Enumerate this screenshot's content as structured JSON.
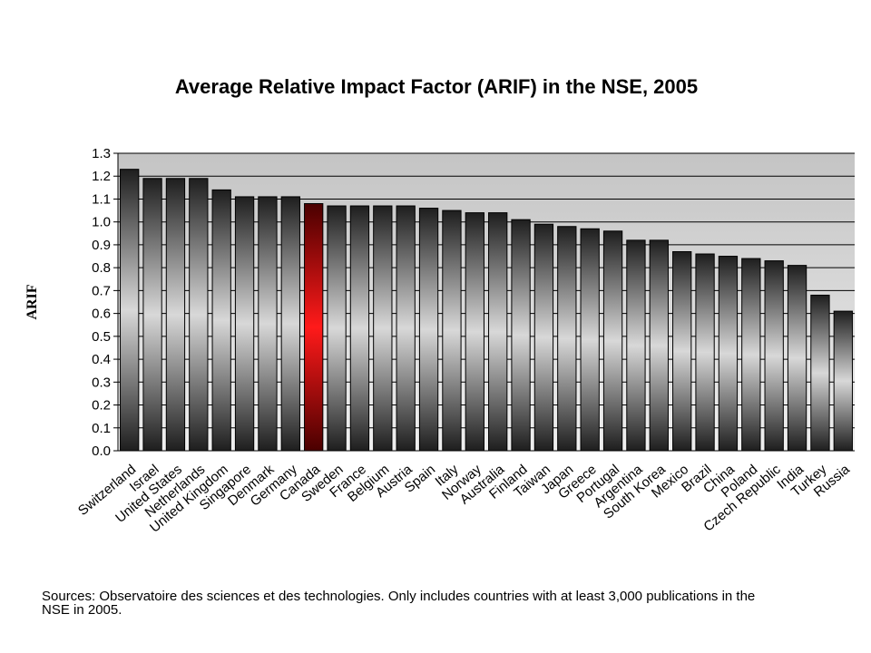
{
  "chart_data": {
    "type": "bar",
    "title": "Average Relative Impact Factor (ARIF) in the NSE, 2005",
    "ylabel": "ARIF",
    "xlabel": "",
    "ylim": [
      0,
      1.3
    ],
    "yticks": [
      "0.0",
      "0.1",
      "0.2",
      "0.3",
      "0.4",
      "0.5",
      "0.6",
      "0.7",
      "0.8",
      "0.9",
      "1.0",
      "1.1",
      "1.2",
      "1.3"
    ],
    "grid": true,
    "highlight_category": "Canada",
    "colors": {
      "bar": "#3a3a3a",
      "highlight": "#e00000",
      "plot_bg_top": "#c8c8c8",
      "plot_bg_bottom": "#ececec"
    },
    "categories": [
      "Switzerland",
      "Israel",
      "United States",
      "Netherlands",
      "United Kingdom",
      "Singapore",
      "Denmark",
      "Germany",
      "Canada",
      "Sweden",
      "France",
      "Belgium",
      "Austria",
      "Spain",
      "Italy",
      "Norway",
      "Australia",
      "Finland",
      "Taiwan",
      "Japan",
      "Greece",
      "Portugal",
      "Argentina",
      "South Korea",
      "Mexico",
      "Brazil",
      "China",
      "Poland",
      "Czech Republic",
      "India",
      "Turkey",
      "Russia"
    ],
    "values": [
      1.23,
      1.19,
      1.19,
      1.19,
      1.14,
      1.11,
      1.11,
      1.11,
      1.08,
      1.07,
      1.07,
      1.07,
      1.07,
      1.06,
      1.05,
      1.04,
      1.04,
      1.01,
      0.99,
      0.98,
      0.97,
      0.96,
      0.92,
      0.92,
      0.87,
      0.86,
      0.85,
      0.84,
      0.83,
      0.81,
      0.68,
      0.61
    ]
  },
  "source_note": "Sources: Observatoire des sciences et des technologies. Only includes countries with at least 3,000 publications in the NSE in 2005."
}
